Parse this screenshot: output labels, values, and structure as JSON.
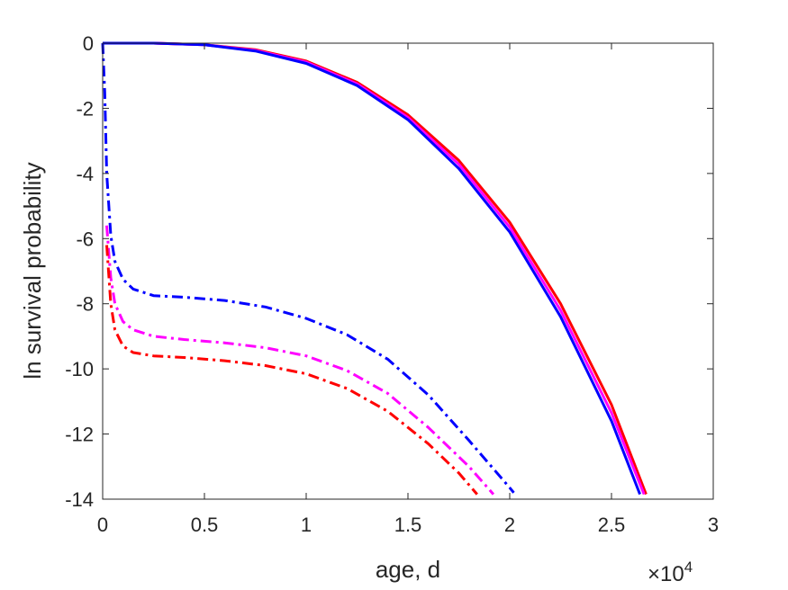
{
  "chart_data": {
    "type": "line",
    "xlabel": "age, d",
    "ylabel": "ln survival probability",
    "x_multiplier": {
      "base": "×10",
      "exponent": "4"
    },
    "xlim": [
      0,
      3
    ],
    "ylim": [
      -14,
      0
    ],
    "xticks": [
      "0",
      "0.5",
      "1",
      "1.5",
      "2",
      "2.5",
      "3"
    ],
    "yticks": [
      "0",
      "-2",
      "-4",
      "-6",
      "-8",
      "-10",
      "-12",
      "-14"
    ],
    "grid": false,
    "series": [
      {
        "color": "#ff0000",
        "style": "solid",
        "width": 3,
        "x": [
          0.0,
          0.25,
          0.5,
          0.75,
          1.0,
          1.25,
          1.5,
          1.75,
          2.0,
          2.25,
          2.5,
          2.67
        ],
        "y": [
          0.0,
          0.0,
          -0.05,
          -0.2,
          -0.55,
          -1.2,
          -2.2,
          -3.6,
          -5.5,
          -8.0,
          -11.1,
          -13.85
        ]
      },
      {
        "color": "#ff00ff",
        "style": "solid",
        "width": 3,
        "x": [
          0.0,
          0.25,
          0.5,
          0.75,
          1.0,
          1.25,
          1.5,
          1.75,
          2.0,
          2.25,
          2.5,
          2.66
        ],
        "y": [
          0.0,
          0.0,
          -0.05,
          -0.22,
          -0.58,
          -1.25,
          -2.28,
          -3.72,
          -5.65,
          -8.2,
          -11.35,
          -13.85
        ]
      },
      {
        "color": "#0000ff",
        "style": "solid",
        "width": 3,
        "x": [
          0.0,
          0.25,
          0.5,
          0.75,
          1.0,
          1.25,
          1.5,
          1.75,
          2.0,
          2.25,
          2.5,
          2.64
        ],
        "y": [
          0.0,
          0.0,
          -0.05,
          -0.24,
          -0.62,
          -1.3,
          -2.35,
          -3.85,
          -5.8,
          -8.4,
          -11.6,
          -13.85
        ]
      },
      {
        "color": "#0000ff",
        "style": "dashdot",
        "width": 3,
        "x": [
          0.0,
          0.01,
          0.02,
          0.04,
          0.06,
          0.1,
          0.15,
          0.25,
          0.4,
          0.6,
          0.8,
          1.0,
          1.2,
          1.4,
          1.6,
          1.8,
          2.0,
          2.02
        ],
        "y": [
          0.0,
          -1.5,
          -4.0,
          -5.9,
          -6.7,
          -7.25,
          -7.55,
          -7.75,
          -7.8,
          -7.9,
          -8.1,
          -8.45,
          -8.95,
          -9.7,
          -10.8,
          -12.2,
          -13.65,
          -13.8
        ]
      },
      {
        "color": "#ff00ff",
        "style": "dashdot",
        "width": 3,
        "x": [
          0.02,
          0.04,
          0.06,
          0.1,
          0.15,
          0.25,
          0.4,
          0.6,
          0.8,
          1.0,
          1.2,
          1.4,
          1.6,
          1.8,
          1.92
        ],
        "y": [
          -5.6,
          -7.2,
          -8.0,
          -8.55,
          -8.8,
          -9.0,
          -9.1,
          -9.2,
          -9.35,
          -9.6,
          -10.05,
          -10.75,
          -11.8,
          -13.0,
          -13.85
        ]
      },
      {
        "color": "#ff0000",
        "style": "dashdot",
        "width": 3,
        "x": [
          0.02,
          0.04,
          0.06,
          0.1,
          0.15,
          0.25,
          0.4,
          0.6,
          0.8,
          1.0,
          1.2,
          1.4,
          1.6,
          1.75,
          1.84
        ],
        "y": [
          -6.2,
          -8.0,
          -8.8,
          -9.3,
          -9.5,
          -9.6,
          -9.65,
          -9.75,
          -9.9,
          -10.15,
          -10.6,
          -11.3,
          -12.3,
          -13.2,
          -13.85
        ]
      }
    ]
  }
}
